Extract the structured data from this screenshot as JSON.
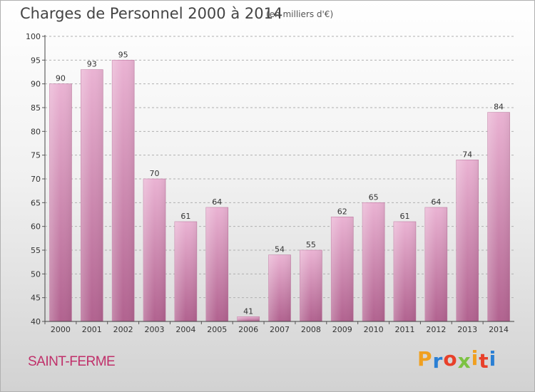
{
  "header": {
    "title": "Charges de Personnel 2000 à 2014",
    "subtitle": "(en milliers d'€)"
  },
  "footer": {
    "commune": "SAINT-FERME",
    "logo_text": "Proxiti",
    "logo_colors": [
      "#f0a020",
      "#2a7fd4",
      "#e8402a",
      "#7cc242",
      "#f0a020",
      "#e8402a",
      "#2a7fd4"
    ]
  },
  "chart_data": {
    "type": "bar",
    "categories": [
      "2000",
      "2001",
      "2002",
      "2003",
      "2004",
      "2005",
      "2006",
      "2007",
      "2008",
      "2009",
      "2010",
      "2011",
      "2012",
      "2013",
      "2014"
    ],
    "values": [
      90,
      93,
      95,
      70,
      61,
      64,
      41,
      54,
      55,
      62,
      65,
      61,
      64,
      74,
      84
    ],
    "ylim": [
      40,
      100
    ],
    "yticks": [
      40,
      45,
      50,
      55,
      60,
      65,
      70,
      75,
      80,
      85,
      90,
      95,
      100
    ],
    "grid": true,
    "bar_color": "#d98fb7"
  }
}
